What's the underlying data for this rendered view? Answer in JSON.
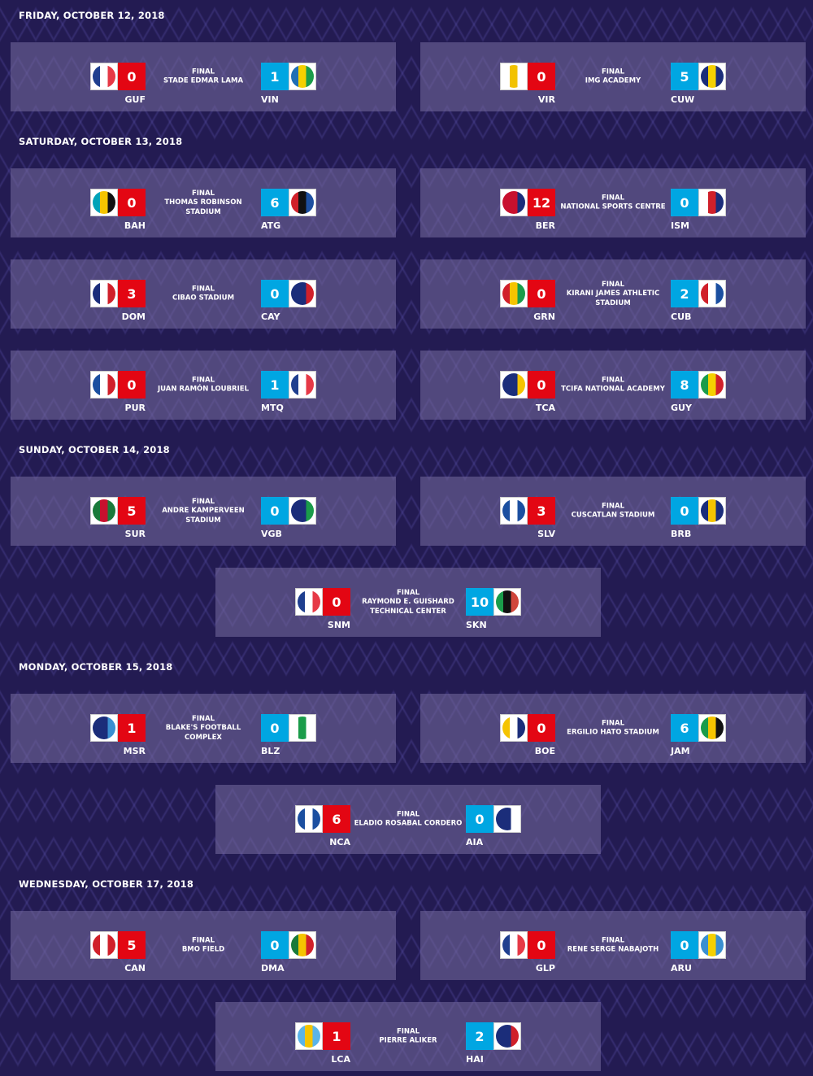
{
  "days": [
    {
      "date": "FRIDAY, OCTOBER 12, 2018",
      "matches": [
        {
          "status": "FINAL",
          "venue": "STADE EDMAR LAMA",
          "home": "GUF",
          "home_score": "0",
          "away": "VIN",
          "away_score": "1",
          "home_flag": [
            "#1f3f8f",
            "#fff",
            "#e63946"
          ],
          "away_flag": [
            "#1f6fb5",
            "#f5d000",
            "#1a9c4a"
          ]
        },
        {
          "status": "FINAL",
          "venue": "IMG ACADEMY",
          "home": "VIR",
          "home_score": "0",
          "away": "CUW",
          "away_score": "5",
          "home_flag": [
            "#fff",
            "#f2c200",
            "#fff"
          ],
          "away_flag": [
            "#1b2d7a",
            "#f5d000",
            "#1b2d7a"
          ]
        }
      ]
    },
    {
      "date": "SATURDAY, OCTOBER 13, 2018",
      "matches": [
        {
          "status": "FINAL",
          "venue": "THOMAS ROBINSON STADIUM",
          "home": "BAH",
          "home_score": "0",
          "away": "ATG",
          "away_score": "6",
          "home_flag": [
            "#00a3b8",
            "#f5c400",
            "#111"
          ],
          "away_flag": [
            "#d0202a",
            "#111",
            "#1d4fa0"
          ]
        },
        {
          "status": "FINAL",
          "venue": "NATIONAL SPORTS CENTRE",
          "home": "BER",
          "home_score": "12",
          "away": "ISM",
          "away_score": "0",
          "home_flag": [
            "#c8102e",
            "#c8102e",
            "#1b2d7a"
          ],
          "away_flag": [
            "#fff",
            "#d0202a",
            "#1b2d7a"
          ]
        },
        {
          "status": "FINAL",
          "venue": "CIBAO STADIUM",
          "home": "DOM",
          "home_score": "3",
          "away": "CAY",
          "away_score": "0",
          "home_flag": [
            "#1b2d7a",
            "#fff",
            "#d0202a"
          ],
          "away_flag": [
            "#1b2d7a",
            "#1b2d7a",
            "#d0202a"
          ]
        },
        {
          "status": "FINAL",
          "venue": "KIRANI JAMES ATHLETIC STADIUM",
          "home": "GRN",
          "home_score": "0",
          "away": "CUB",
          "away_score": "2",
          "home_flag": [
            "#d0202a",
            "#f5c400",
            "#1a9c4a"
          ],
          "away_flag": [
            "#d0202a",
            "#fff",
            "#1b4fa0"
          ]
        },
        {
          "status": "FINAL",
          "venue": "JUAN RAMÓN LOUBRIEL",
          "home": "PUR",
          "home_score": "0",
          "away": "MTQ",
          "away_score": "1",
          "home_flag": [
            "#1b4fa0",
            "#fff",
            "#d0202a"
          ],
          "away_flag": [
            "#1f3f8f",
            "#fff",
            "#e63946"
          ]
        },
        {
          "status": "FINAL",
          "venue": "TCIFA NATIONAL ACADEMY",
          "home": "TCA",
          "home_score": "0",
          "away": "GUY",
          "away_score": "8",
          "home_flag": [
            "#1b2d7a",
            "#1b2d7a",
            "#f5c400"
          ],
          "away_flag": [
            "#1a9c4a",
            "#f5d000",
            "#d0202a"
          ]
        }
      ]
    },
    {
      "date": "SUNDAY, OCTOBER 14, 2018",
      "matches": [
        {
          "status": "FINAL",
          "venue": "ANDRE KAMPERVEEN STADIUM",
          "home": "SUR",
          "home_score": "5",
          "away": "VGB",
          "away_score": "0",
          "home_flag": [
            "#1a7a3a",
            "#c8102e",
            "#1a7a3a"
          ],
          "away_flag": [
            "#1b2d7a",
            "#1b2d7a",
            "#1a9c4a"
          ]
        },
        {
          "status": "FINAL",
          "venue": "CUSCATLAN STADIUM",
          "home": "SLV",
          "home_score": "3",
          "away": "BRB",
          "away_score": "0",
          "home_flag": [
            "#1b4fa0",
            "#fff",
            "#1b4fa0"
          ],
          "away_flag": [
            "#1b2d7a",
            "#f5c400",
            "#1b2d7a"
          ]
        },
        {
          "status": "FINAL",
          "venue": "RAYMOND E. GUISHARD TECHNICAL CENTER",
          "home": "SNM",
          "home_score": "0",
          "away": "SKN",
          "away_score": "10",
          "home_flag": [
            "#1f3f8f",
            "#fff",
            "#e63946"
          ],
          "away_flag": [
            "#1a9c4a",
            "#111",
            "#d0453a"
          ]
        }
      ]
    },
    {
      "date": "MONDAY, OCTOBER 15, 2018",
      "matches": [
        {
          "status": "FINAL",
          "venue": "BLAKE'S FOOTBALL COMPLEX",
          "home": "MSR",
          "home_score": "1",
          "away": "BLZ",
          "away_score": "0",
          "home_flag": [
            "#1b2d7a",
            "#1b2d7a",
            "#3a8fd0"
          ],
          "away_flag": [
            "#fff",
            "#1a9c4a",
            "#fff"
          ]
        },
        {
          "status": "FINAL",
          "venue": "ERGILIO HATO STADIUM",
          "home": "BOE",
          "home_score": "0",
          "away": "JAM",
          "away_score": "6",
          "home_flag": [
            "#f5c400",
            "#fff",
            "#1b2d7a"
          ],
          "away_flag": [
            "#1a9c4a",
            "#f5c400",
            "#111"
          ]
        },
        {
          "status": "FINAL",
          "venue": "ELADIO ROSABAL CORDERO",
          "home": "NCA",
          "home_score": "6",
          "away": "AIA",
          "away_score": "0",
          "home_flag": [
            "#1b4fa0",
            "#fff",
            "#1b4fa0"
          ],
          "away_flag": [
            "#1b2d7a",
            "#1b2d7a",
            "#fff"
          ]
        }
      ]
    },
    {
      "date": "WEDNESDAY, OCTOBER 17, 2018",
      "matches": [
        {
          "status": "FINAL",
          "venue": "BMO FIELD",
          "home": "CAN",
          "home_score": "5",
          "away": "DMA",
          "away_score": "0",
          "home_flag": [
            "#d0202a",
            "#fff",
            "#d0202a"
          ],
          "away_flag": [
            "#1a7a3a",
            "#f5c400",
            "#d0202a"
          ]
        },
        {
          "status": "FINAL",
          "venue": "RENE SERGE NABAJOTH",
          "home": "GLP",
          "home_score": "0",
          "away": "ARU",
          "away_score": "0",
          "home_flag": [
            "#1f3f8f",
            "#fff",
            "#e63946"
          ],
          "away_flag": [
            "#3a8fd0",
            "#f5d000",
            "#3a8fd0"
          ]
        },
        {
          "status": "FINAL",
          "venue": "PIERRE ALIKER",
          "home": "LCA",
          "home_score": "1",
          "away": "HAI",
          "away_score": "2",
          "home_flag": [
            "#5ab4e8",
            "#f5c400",
            "#5ab4e8"
          ],
          "away_flag": [
            "#1b2d7a",
            "#1b2d7a",
            "#d0202a"
          ]
        }
      ]
    }
  ]
}
